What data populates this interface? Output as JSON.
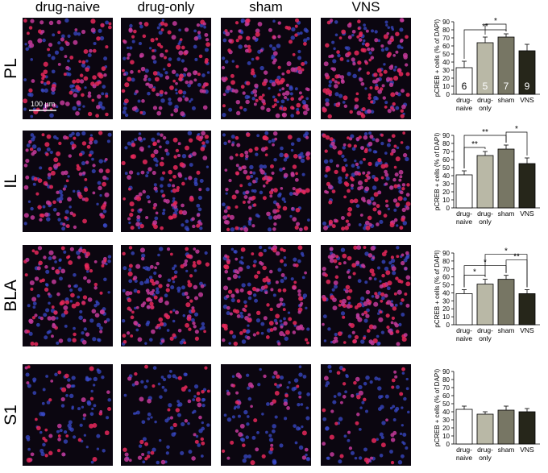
{
  "column_headers": [
    "drug-naive",
    "drug-only",
    "sham",
    "VNS"
  ],
  "row_labels": [
    "PL",
    "IL",
    "BLA",
    "S1"
  ],
  "scale_bar": "100 µm",
  "chart_data": [
    {
      "type": "bar",
      "y_label": "pCREB + cells (% of DAPI)",
      "categories": [
        "drug-naive",
        "drug-only",
        "sham",
        "VNS"
      ],
      "values": [
        33,
        64,
        71,
        54
      ],
      "errors": [
        8,
        7,
        4,
        8
      ],
      "counts": [
        6,
        5,
        7,
        9
      ],
      "colors": [
        "#ffffff",
        "#b9b8a6",
        "#777664",
        "#26261a"
      ],
      "ylim": [
        0,
        90
      ],
      "yticks": [
        0,
        10,
        20,
        30,
        40,
        50,
        60,
        70,
        80,
        90
      ],
      "significance": [
        {
          "groups": [
            "drug-naive",
            "sham"
          ],
          "label": "**"
        },
        {
          "groups": [
            "drug-only",
            "sham"
          ],
          "label": "*"
        }
      ]
    },
    {
      "type": "bar",
      "y_label": "pCREB + cells (% of DAPI)",
      "categories": [
        "drug-naive",
        "drug-only",
        "sham",
        "VNS"
      ],
      "values": [
        41,
        65,
        73,
        55
      ],
      "errors": [
        5,
        5,
        5,
        7
      ],
      "colors": [
        "#ffffff",
        "#b9b8a6",
        "#777664",
        "#26261a"
      ],
      "ylim": [
        0,
        90
      ],
      "yticks": [
        0,
        10,
        20,
        30,
        40,
        50,
        60,
        70,
        80,
        90
      ],
      "significance": [
        {
          "groups": [
            "drug-naive",
            "drug-only"
          ],
          "label": "**"
        },
        {
          "groups": [
            "drug-naive",
            "sham"
          ],
          "label": "**"
        },
        {
          "groups": [
            "sham",
            "VNS"
          ],
          "label": "*"
        }
      ]
    },
    {
      "type": "bar",
      "y_label": "pCREB + cells (% of DAPI)",
      "categories": [
        "drug-naive",
        "drug-only",
        "sham",
        "VNS"
      ],
      "values": [
        39,
        51,
        57,
        39
      ],
      "errors": [
        5,
        6,
        5,
        5
      ],
      "colors": [
        "#ffffff",
        "#b9b8a6",
        "#777664",
        "#26261a"
      ],
      "ylim": [
        0,
        90
      ],
      "yticks": [
        0,
        10,
        20,
        30,
        40,
        50,
        60,
        70,
        80,
        90
      ],
      "significance": [
        {
          "groups": [
            "drug-naive",
            "drug-only"
          ],
          "label": "*"
        },
        {
          "groups": [
            "drug-naive",
            "sham"
          ],
          "label": "*"
        },
        {
          "groups": [
            "sham",
            "VNS"
          ],
          "label": "**"
        },
        {
          "groups": [
            "drug-only",
            "VNS"
          ],
          "label": "*"
        }
      ]
    },
    {
      "type": "bar",
      "y_label": "pCREB + cells (% of DAPI)",
      "categories": [
        "drug-naive",
        "drug-only",
        "sham",
        "VNS"
      ],
      "values": [
        43,
        37,
        42,
        40
      ],
      "errors": [
        4,
        3,
        5,
        4
      ],
      "colors": [
        "#ffffff",
        "#b9b8a6",
        "#777664",
        "#26261a"
      ],
      "ylim": [
        0,
        90
      ],
      "yticks": [
        0,
        10,
        20,
        30,
        40,
        50,
        60,
        70,
        80,
        90
      ],
      "significance": []
    }
  ]
}
